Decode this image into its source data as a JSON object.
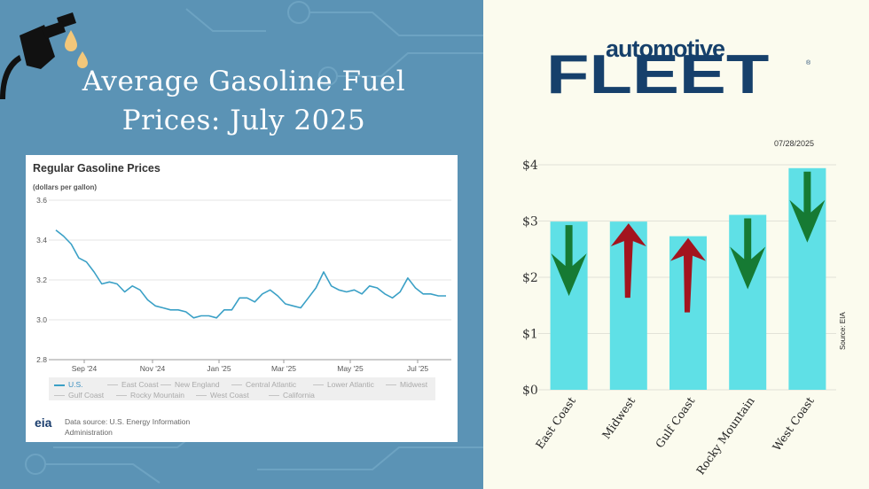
{
  "headline": {
    "line1": "Average Gasoline Fuel",
    "line2": "Prices: July 2025"
  },
  "icons": {
    "fuel_pump": "fuel-nozzle-icon",
    "droplets": "fuel-drop-icon"
  },
  "colors": {
    "left_background": "#5b93b5",
    "right_background": "#fbfbee",
    "line_series": "#3aa0c6",
    "bar_fill": "#5fe0e6",
    "arrow_down": "#167a33",
    "arrow_up": "#a3141e",
    "brand": "#16406b"
  },
  "brand": {
    "top": "automotive",
    "main": "FLEET",
    "reg": "®"
  },
  "date_label": "07/28/2025",
  "source_label": "Source: EIA",
  "eia": {
    "logo": "eia",
    "source_line1": "Data source: U.S. Energy Information",
    "source_line2": "Administration",
    "legend": [
      {
        "label": "U.S.",
        "active": true
      },
      {
        "label": "East Coast",
        "active": false
      },
      {
        "label": "New England",
        "active": false
      },
      {
        "label": "Central Atlantic",
        "active": false
      },
      {
        "label": "Lower Atlantic",
        "active": false
      },
      {
        "label": "Midwest",
        "active": false
      },
      {
        "label": "Gulf Coast",
        "active": false
      },
      {
        "label": "Rocky Mountain",
        "active": false
      },
      {
        "label": "West Coast",
        "active": false
      },
      {
        "label": "California",
        "active": false
      }
    ]
  },
  "chart_data": [
    {
      "type": "line",
      "title": "Regular Gasoline Prices",
      "ylabel": "(dollars per gallon)",
      "xlabel": "",
      "ylim": [
        2.8,
        3.6
      ],
      "yticks": [
        "3.6",
        "3.4",
        "3.2",
        "3.0",
        "2.8"
      ],
      "xticks": [
        "Sep '24",
        "Nov '24",
        "Jan '25",
        "Mar '25",
        "May '25",
        "Jul '25"
      ],
      "grid": true,
      "series": [
        {
          "name": "U.S.",
          "values": [
            3.45,
            3.42,
            3.38,
            3.31,
            3.29,
            3.24,
            3.18,
            3.19,
            3.18,
            3.14,
            3.17,
            3.15,
            3.1,
            3.07,
            3.06,
            3.05,
            3.05,
            3.04,
            3.01,
            3.02,
            3.02,
            3.01,
            3.05,
            3.05,
            3.11,
            3.11,
            3.09,
            3.13,
            3.15,
            3.12,
            3.08,
            3.07,
            3.06,
            3.11,
            3.16,
            3.24,
            3.17,
            3.15,
            3.14,
            3.15,
            3.13,
            3.17,
            3.16,
            3.13,
            3.11,
            3.14,
            3.21,
            3.16,
            3.13,
            3.13,
            3.12,
            3.12
          ]
        }
      ]
    },
    {
      "type": "bar",
      "title": "",
      "xlabel": "",
      "ylabel": "",
      "ylim": [
        0,
        4
      ],
      "yticks": [
        "$0",
        "$1",
        "$2",
        "$3",
        "$4"
      ],
      "categories": [
        "East Coast",
        "Midwest",
        "Gulf Coast",
        "Rocky Mountain",
        "West Coast"
      ],
      "values": [
        2.99,
        2.99,
        2.73,
        3.11,
        3.94
      ],
      "direction": [
        "down",
        "up",
        "up",
        "down",
        "down"
      ],
      "grid": true
    }
  ]
}
